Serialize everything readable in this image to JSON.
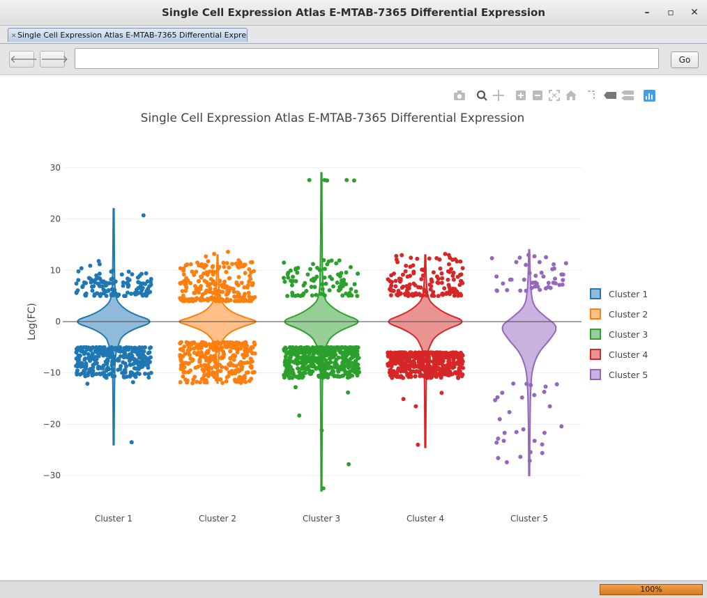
{
  "window": {
    "title": "Single Cell Expression Atlas E-MTAB-7365 Differential Expression"
  },
  "tabs": [
    {
      "label": "Single Cell Expression Atlas E-MTAB-7365 Differential Expression"
    }
  ],
  "nav": {
    "back_icon": "arrow-left-icon",
    "forward_icon": "arrow-right-icon",
    "url_value": "",
    "go_label": "Go"
  },
  "modebar": {
    "icons": [
      "camera-icon",
      "zoom-icon",
      "pan-icon",
      "zoom-in-icon",
      "zoom-out-icon",
      "autoscale-icon",
      "home-icon",
      "spike-lines-icon",
      "hover-closest-icon",
      "hover-compare-icon",
      "plotly-logo-icon"
    ]
  },
  "status": {
    "progress_label": "100%",
    "progress_value": 1.0
  },
  "colors": {
    "cluster1": "#1f77b4",
    "cluster2": "#ff7f0e",
    "cluster3": "#2ca02c",
    "cluster4": "#d62728",
    "cluster5": "#9467bd"
  },
  "chart_data": {
    "type": "violin",
    "title": "Single Cell Expression Atlas E-MTAB-7365 Differential Expression",
    "ylabel": "Log(FC)",
    "xlabel": "",
    "ylim": [
      -36,
      36
    ],
    "yticks": [
      30,
      20,
      10,
      0,
      -10,
      -20,
      -30
    ],
    "ytick_labels": [
      "30",
      "20",
      "10",
      "0",
      "−10",
      "−20",
      "−30"
    ],
    "categories": [
      "Cluster 1",
      "Cluster 2",
      "Cluster 3",
      "Cluster 4",
      "Cluster 5"
    ],
    "legend": {
      "position": "right",
      "entries": [
        "Cluster 1",
        "Cluster 2",
        "Cluster 3",
        "Cluster 4",
        "Cluster 5"
      ]
    },
    "zeroline": true,
    "series": [
      {
        "name": "Cluster 1",
        "color": "#1f77b4",
        "min": -24,
        "max": 22,
        "violin": [
          [
            -24,
            0.01
          ],
          [
            -10,
            0.02
          ],
          [
            -6,
            0.05
          ],
          [
            -4.5,
            0.12
          ],
          [
            -3,
            0.18
          ],
          [
            -1.5,
            0.45
          ],
          [
            0,
            1
          ],
          [
            1.5,
            0.45
          ],
          [
            3,
            0.18
          ],
          [
            4.5,
            0.05
          ],
          [
            8,
            0.02
          ],
          [
            22,
            0.01
          ]
        ],
        "upper_cluster": [
          5,
          10
        ],
        "lower_cluster": [
          -11,
          -5
        ],
        "upper_count": 130,
        "lower_count": 300,
        "outliers": [
          20.7,
          11.8,
          11.2,
          10.9,
          10.4,
          -11.8,
          -12.1,
          -23.5
        ]
      },
      {
        "name": "Cluster 2",
        "color": "#ff7f0e",
        "min": -12,
        "max": 13,
        "violin": [
          [
            -12,
            0.01
          ],
          [
            -8,
            0.02
          ],
          [
            -5,
            0.05
          ],
          [
            -3.5,
            0.12
          ],
          [
            -2,
            0.3
          ],
          [
            -0.8,
            0.65
          ],
          [
            0,
            1
          ],
          [
            0.8,
            0.65
          ],
          [
            2,
            0.3
          ],
          [
            3.5,
            0.12
          ],
          [
            5,
            0.05
          ],
          [
            9,
            0.02
          ],
          [
            13,
            0.01
          ]
        ],
        "upper_cluster": [
          4,
          12
        ],
        "lower_cluster": [
          -12,
          -4
        ],
        "upper_count": 220,
        "lower_count": 320,
        "outliers": [
          13.6,
          13.2,
          12.7
        ]
      },
      {
        "name": "Cluster 3",
        "color": "#2ca02c",
        "min": -33,
        "max": 29,
        "violin": [
          [
            -33,
            0.01
          ],
          [
            -10,
            0.02
          ],
          [
            -6,
            0.05
          ],
          [
            -4.5,
            0.12
          ],
          [
            -3,
            0.22
          ],
          [
            -1.5,
            0.5
          ],
          [
            0,
            1
          ],
          [
            1.5,
            0.5
          ],
          [
            3,
            0.22
          ],
          [
            4.5,
            0.06
          ],
          [
            9,
            0.02
          ],
          [
            29,
            0.01
          ]
        ],
        "upper_cluster": [
          5,
          12
        ],
        "lower_cluster": [
          -11,
          -5
        ],
        "upper_count": 90,
        "lower_count": 500,
        "outliers": [
          27.6,
          27.5,
          27.6,
          27.5,
          27.6,
          -12.8,
          -13.8,
          -18.3,
          -21.2,
          -27.8,
          -32.5
        ]
      },
      {
        "name": "Cluster 4",
        "color": "#d62728",
        "min": -24.5,
        "max": 13,
        "violin": [
          [
            -24.5,
            0.01
          ],
          [
            -10,
            0.02
          ],
          [
            -6,
            0.05
          ],
          [
            -4.5,
            0.12
          ],
          [
            -3,
            0.22
          ],
          [
            -1.5,
            0.5
          ],
          [
            0,
            1
          ],
          [
            1.5,
            0.5
          ],
          [
            3,
            0.22
          ],
          [
            4.5,
            0.06
          ],
          [
            8,
            0.02
          ],
          [
            13,
            0.01
          ]
        ],
        "upper_cluster": [
          5,
          13
        ],
        "lower_cluster": [
          -11,
          -6
        ],
        "upper_count": 150,
        "lower_count": 520,
        "outliers": [
          13.2,
          12.8,
          -13.9,
          -15.1,
          -16.5,
          -24.0
        ]
      },
      {
        "name": "Cluster 5",
        "color": "#9467bd",
        "min": -30,
        "max": 14,
        "violin": [
          [
            -30,
            0.01
          ],
          [
            -18,
            0.02
          ],
          [
            -12,
            0.04
          ],
          [
            -9,
            0.08
          ],
          [
            -6,
            0.22
          ],
          [
            -3.5,
            0.5
          ],
          [
            -1,
            0.7
          ],
          [
            0.8,
            0.4
          ],
          [
            3,
            0.1
          ],
          [
            6,
            0.04
          ],
          [
            10,
            0.02
          ],
          [
            14,
            0.01
          ]
        ],
        "upper_cluster": [
          6,
          13
        ],
        "lower_cluster": [
          -29,
          -12
        ],
        "upper_count": 45,
        "lower_count": 30,
        "outliers": []
      }
    ]
  }
}
